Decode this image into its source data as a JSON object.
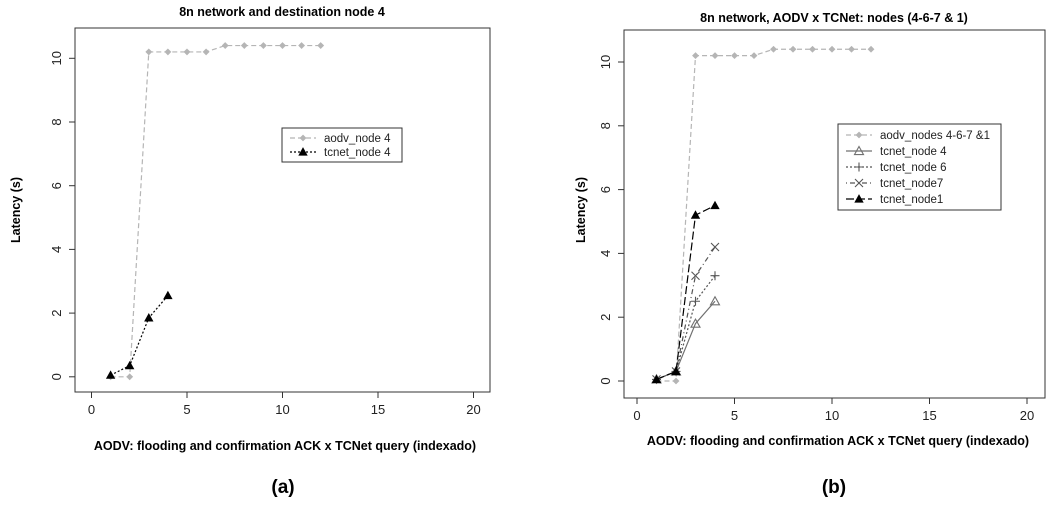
{
  "chart_data": [
    {
      "type": "line",
      "panel_label": "(a)",
      "title": "8n network and destination node 4",
      "xlabel": "AODV: flooding and confirmation ACK x TCNet query (indexado)",
      "ylabel": "Latency (s)",
      "xlim": [
        0,
        20
      ],
      "ylim": [
        0,
        10.4
      ],
      "xticks": [
        0,
        5,
        10,
        15,
        20
      ],
      "yticks": [
        0,
        2,
        4,
        6,
        8,
        10
      ],
      "grid": false,
      "legend": "top-right",
      "series": [
        {
          "name": "aodv_node 4",
          "color": "#b5b5b5",
          "line": "dashed",
          "marker": "diamond",
          "x": [
            1,
            2,
            3,
            4,
            5,
            6,
            7,
            8,
            9,
            10,
            11,
            12
          ],
          "y": [
            0,
            0,
            10.2,
            10.2,
            10.2,
            10.2,
            10.4,
            10.4,
            10.4,
            10.4,
            10.4,
            10.4
          ]
        },
        {
          "name": "tcnet_node 4",
          "color": "#000000",
          "line": "dotted",
          "marker": "triangle-filled",
          "x": [
            1,
            2,
            3,
            4
          ],
          "y": [
            0.05,
            0.35,
            1.85,
            2.55
          ]
        }
      ]
    },
    {
      "type": "line",
      "panel_label": "(b)",
      "title": "8n network, AODV x TCNet: nodes (4-6-7 & 1)",
      "xlabel": "AODV: flooding and confirmation ACK x TCNet query (indexado)",
      "ylabel": "Latency (s)",
      "xlim": [
        0,
        20
      ],
      "ylim": [
        0,
        10.4
      ],
      "xticks": [
        0,
        5,
        10,
        15,
        20
      ],
      "yticks": [
        0,
        2,
        4,
        6,
        8,
        10
      ],
      "grid": false,
      "legend": "top-right",
      "series": [
        {
          "name": "aodv_nodes 4-6-7 &1",
          "color": "#b5b5b5",
          "line": "dashed",
          "marker": "diamond",
          "x": [
            1,
            2,
            3,
            4,
            5,
            6,
            7,
            8,
            9,
            10,
            11,
            12
          ],
          "y": [
            0,
            0,
            10.2,
            10.2,
            10.2,
            10.2,
            10.4,
            10.4,
            10.4,
            10.4,
            10.4,
            10.4
          ]
        },
        {
          "name": "tcnet_node 4",
          "color": "#707070",
          "line": "solid",
          "marker": "triangle-open",
          "x": [
            1,
            2,
            3,
            4
          ],
          "y": [
            0.05,
            0.3,
            1.8,
            2.5
          ]
        },
        {
          "name": "tcnet_node 6",
          "color": "#555555",
          "line": "dotted",
          "marker": "plus",
          "x": [
            1,
            2,
            3,
            4
          ],
          "y": [
            0.05,
            0.3,
            2.5,
            3.3
          ]
        },
        {
          "name": "tcnet_node7",
          "color": "#555555",
          "line": "dotdash",
          "marker": "cross",
          "x": [
            1,
            2,
            3,
            4
          ],
          "y": [
            0.05,
            0.3,
            3.3,
            4.2
          ]
        },
        {
          "name": "tcnet_node1",
          "color": "#000000",
          "line": "longdash",
          "marker": "triangle-filled",
          "x": [
            1,
            2,
            3,
            4
          ],
          "y": [
            0.05,
            0.3,
            5.2,
            5.5
          ]
        }
      ]
    }
  ]
}
